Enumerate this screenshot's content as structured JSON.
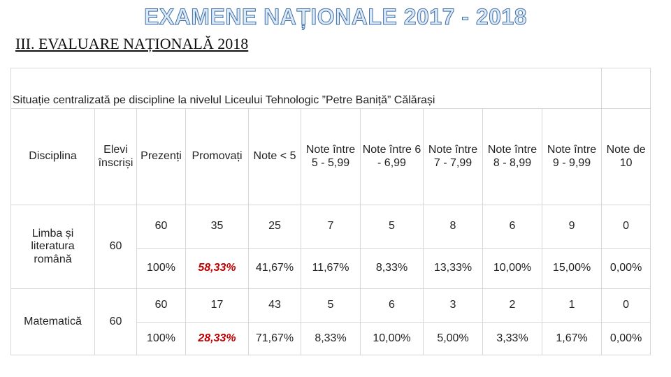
{
  "header": {
    "title": "EXAMENE NAȚIONALE 2017 - 2018",
    "subtitle": "III. EVALUARE NAȚIONALĂ 2018"
  },
  "table": {
    "caption": "Situație centralizată pe discipline la nivelul Liceului Tehnologic ”Petre Baniță” Călărași",
    "headers": [
      "Disciplina",
      "Elevi înscriși",
      "Prezenți",
      "Promovați",
      "Note < 5",
      "Note între 5 - 5,99",
      "Note între 6 - 6,99",
      "Note între 7 - 7,99",
      "Note între 8 - 8,99",
      "Note între 9 - 9,99",
      "Note de 10"
    ],
    "rows": [
      {
        "discipline": "Limba și literatura română",
        "enrolled": "60",
        "counts": [
          "60",
          "35",
          "25",
          "7",
          "5",
          "8",
          "6",
          "9",
          "0"
        ],
        "percents": [
          "100%",
          "58,33%",
          "41,67%",
          "11,67%",
          "8,33%",
          "13,33%",
          "10,00%",
          "15,00%",
          "0,00%"
        ]
      },
      {
        "discipline": "Matematică",
        "enrolled": "60",
        "counts": [
          "60",
          "17",
          "43",
          "5",
          "6",
          "3",
          "2",
          "1",
          "0"
        ],
        "percents": [
          "100%",
          "28,33%",
          "71,67%",
          "8,33%",
          "10,00%",
          "5,00%",
          "3,33%",
          "1,67%",
          "0,00%"
        ]
      }
    ]
  }
}
